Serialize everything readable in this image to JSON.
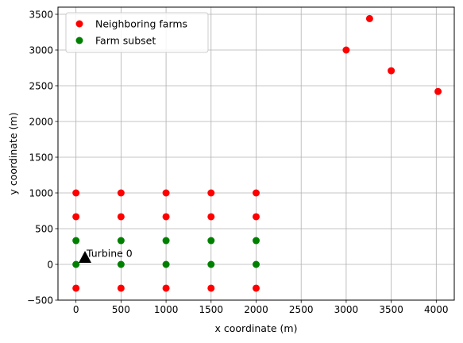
{
  "chart_data": {
    "type": "scatter",
    "xlabel": "x coordinate (m)",
    "ylabel": "y coordinate (m)",
    "xlim": [
      -200,
      4200
    ],
    "ylim": [
      -500,
      3600
    ],
    "xticks": [
      0,
      500,
      1000,
      1500,
      2000,
      2500,
      3000,
      3500,
      4000
    ],
    "yticks": [
      -500,
      0,
      500,
      1000,
      1500,
      2000,
      2500,
      3000,
      3500
    ],
    "grid": true,
    "legend_position": "top-left",
    "series": [
      {
        "name": "Neighboring farms",
        "color": "#ff0000",
        "points": [
          [
            0,
            1000
          ],
          [
            500,
            1000
          ],
          [
            1000,
            1000
          ],
          [
            1500,
            1000
          ],
          [
            2000,
            1000
          ],
          [
            0,
            667
          ],
          [
            500,
            667
          ],
          [
            1000,
            667
          ],
          [
            1500,
            667
          ],
          [
            2000,
            667
          ],
          [
            0,
            -333
          ],
          [
            500,
            -333
          ],
          [
            1000,
            -333
          ],
          [
            1500,
            -333
          ],
          [
            2000,
            -333
          ],
          [
            3000,
            3000
          ],
          [
            3260,
            3440
          ],
          [
            3500,
            2710
          ],
          [
            4020,
            2420
          ]
        ]
      },
      {
        "name": "Farm subset",
        "color": "#008000",
        "points": [
          [
            0,
            333
          ],
          [
            500,
            333
          ],
          [
            1000,
            333
          ],
          [
            1500,
            333
          ],
          [
            2000,
            333
          ],
          [
            0,
            0
          ],
          [
            500,
            0
          ],
          [
            1000,
            0
          ],
          [
            1500,
            0
          ],
          [
            2000,
            0
          ]
        ]
      }
    ],
    "annotations": [
      {
        "text": "Turbine 0",
        "x": 100,
        "y": 100,
        "marker": "triangle",
        "color": "#000000"
      }
    ]
  }
}
